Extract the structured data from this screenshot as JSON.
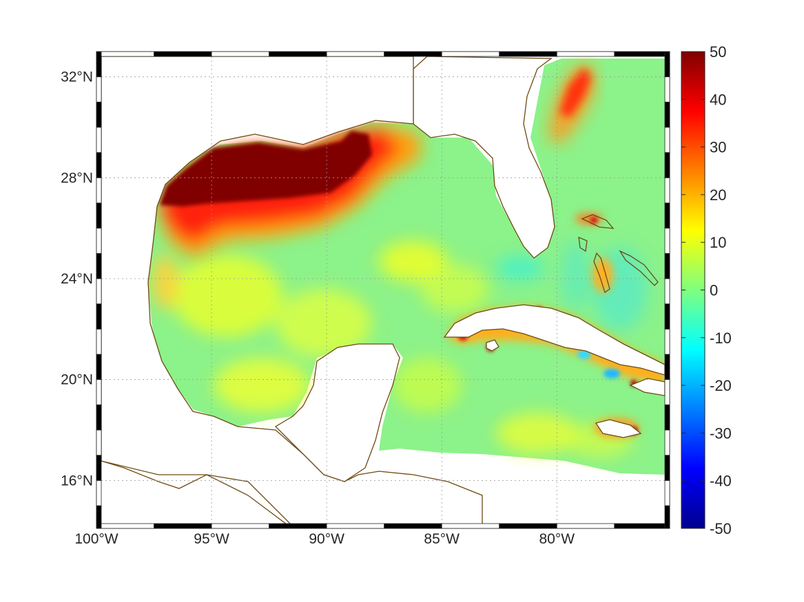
{
  "map": {
    "x_ticks": [
      {
        "lon": -100,
        "label": "100°W"
      },
      {
        "lon": -95,
        "label": "95°W"
      },
      {
        "lon": -90,
        "label": "90°W"
      },
      {
        "lon": -85,
        "label": "85°W"
      },
      {
        "lon": -80,
        "label": "80°W"
      }
    ],
    "y_ticks": [
      {
        "lat": 32,
        "label": "32°N"
      },
      {
        "lat": 28,
        "label": "28°N"
      },
      {
        "lat": 24,
        "label": "24°N"
      },
      {
        "lat": 20,
        "label": "20°N"
      },
      {
        "lat": 16,
        "label": "16°N"
      }
    ],
    "lon_range": [
      -100,
      -75.1
    ],
    "lat_range": [
      14.1,
      33.0
    ],
    "grid": true,
    "coastline_color": "#6b4a12",
    "land_color": "#ffffff"
  },
  "colorbar": {
    "range": [
      -50,
      50
    ],
    "ticks": [
      "50",
      "40",
      "30",
      "20",
      "10",
      "0",
      "-10",
      "-20",
      "-30",
      "-40",
      "-50"
    ],
    "colormap": "jet",
    "placement": "right"
  }
}
